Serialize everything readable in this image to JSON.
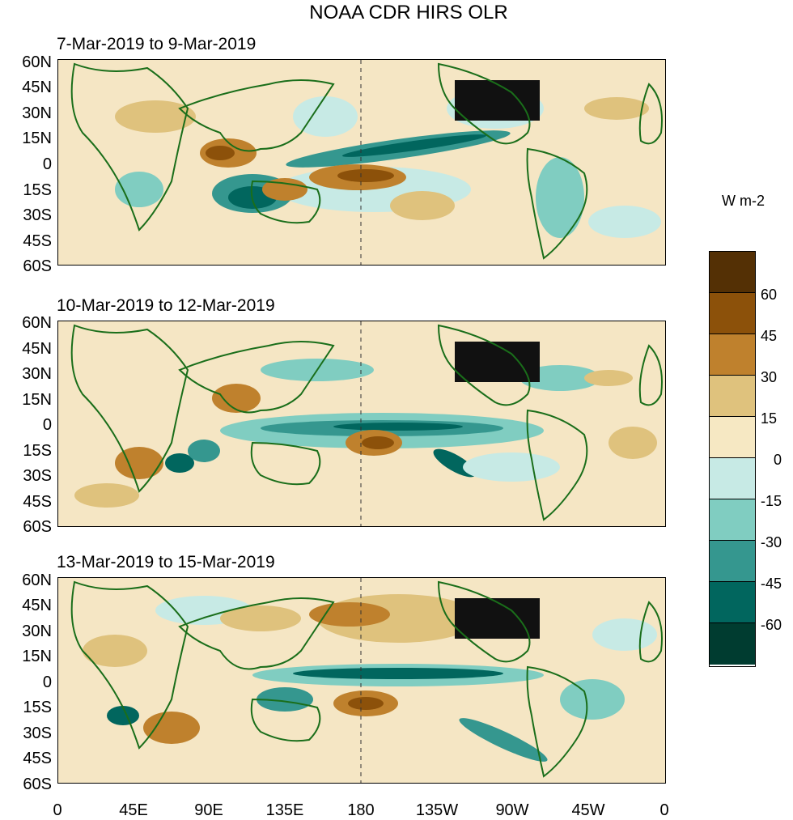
{
  "title": "NOAA CDR HIRS OLR",
  "panels": [
    {
      "title": "7-Mar-2019 to 9-Mar-2019"
    },
    {
      "title": "10-Mar-2019 to 12-Mar-2019"
    },
    {
      "title": "13-Mar-2019 to 15-Mar-2019"
    }
  ],
  "lat_labels": [
    "60N",
    "45N",
    "30N",
    "15N",
    "0",
    "15S",
    "30S",
    "45S",
    "60S"
  ],
  "lon_labels": [
    "0",
    "45E",
    "90E",
    "135E",
    "180",
    "135W",
    "90W",
    "45W",
    "0"
  ],
  "colorbar": {
    "units": "W m-2",
    "labels": [
      "60",
      "45",
      "30",
      "15",
      "0",
      "-15",
      "-30",
      "-45",
      "-60"
    ],
    "colors": [
      "#543005",
      "#8c510a",
      "#bf812d",
      "#dfc27d",
      "#f6e8c3",
      "#c7eae5",
      "#80cdc1",
      "#35978f",
      "#01665e",
      "#003c30"
    ]
  },
  "palette": {
    "neutral": "#f5e6c4",
    "coast": "#1a6e1a",
    "land_mask": "#111111"
  }
}
